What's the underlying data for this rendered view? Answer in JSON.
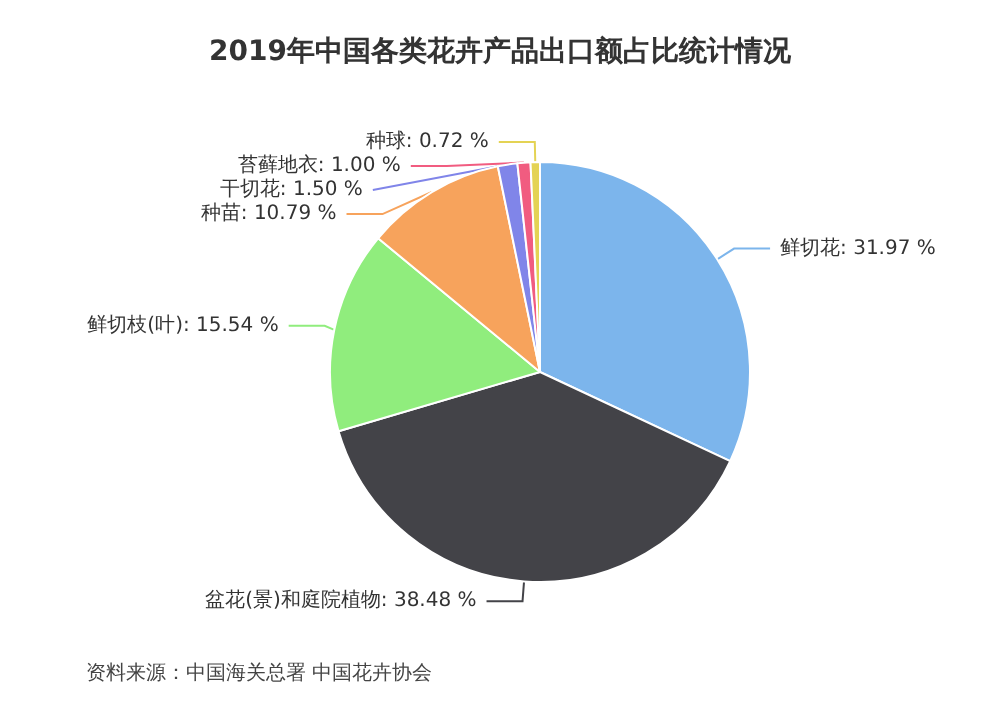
{
  "chart_data": {
    "type": "pie",
    "title": "2019年中国各类花卉产品出口额占比统计情况",
    "categories": [
      "鲜切花",
      "盆花(景)和庭院植物",
      "鲜切枝(叶)",
      "种苗",
      "干切花",
      "苔藓地衣",
      "种球"
    ],
    "values": [
      31.97,
      38.48,
      15.54,
      10.79,
      1.5,
      1.0,
      0.72
    ],
    "colors": [
      "#7cb5ec",
      "#434348",
      "#90ed7d",
      "#f7a35c",
      "#8085e9",
      "#f15c80",
      "#e4d354"
    ],
    "value_labels": [
      ": 31.97 %",
      ": 38.48 %",
      ": 15.54 %",
      ": 10.79 %",
      ": 1.50 %",
      ": 1.00 %",
      ": 0.72 %"
    ],
    "annotations": [
      "资料来源：中国海关总署 中国花卉协会"
    ]
  }
}
